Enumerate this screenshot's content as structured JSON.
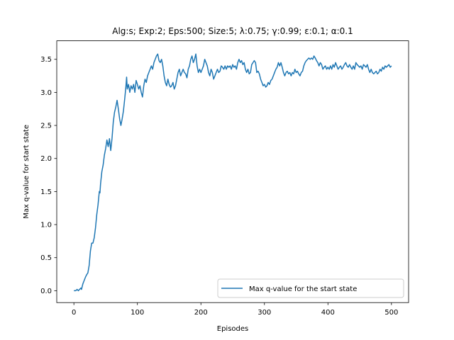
{
  "chart_data": {
    "type": "line",
    "title": "Alg:s; Exp:2; Eps:500; Size:5; λ:0.75; γ:0.99; ε:0.1; α:0.1",
    "xlabel": "Episodes",
    "ylabel": "Max q-value for start state",
    "xlim": [
      -27,
      527
    ],
    "ylim": [
      -0.18,
      3.78
    ],
    "xticks": [
      0,
      100,
      200,
      300,
      400,
      500
    ],
    "yticks": [
      0.0,
      0.5,
      1.0,
      1.5,
      2.0,
      2.5,
      3.0,
      3.5
    ],
    "xtick_labels": [
      "0",
      "100",
      "200",
      "300",
      "400",
      "500"
    ],
    "ytick_labels": [
      "0.0",
      "0.5",
      "1.0",
      "1.5",
      "2.0",
      "2.5",
      "3.0",
      "3.5"
    ],
    "grid": false,
    "legend": "lower right",
    "series": [
      {
        "name": "Max q-value for the start state",
        "color": "#1f77b4",
        "points": [
          [
            0,
            0.0
          ],
          [
            3,
            0.0
          ],
          [
            5,
            0.02
          ],
          [
            7,
            0.0
          ],
          [
            9,
            0.02
          ],
          [
            11,
            0.04
          ],
          [
            12,
            0.02
          ],
          [
            14,
            0.1
          ],
          [
            16,
            0.15
          ],
          [
            18,
            0.2
          ],
          [
            20,
            0.24
          ],
          [
            22,
            0.27
          ],
          [
            24,
            0.38
          ],
          [
            26,
            0.6
          ],
          [
            28,
            0.72
          ],
          [
            30,
            0.72
          ],
          [
            32,
            0.8
          ],
          [
            34,
            0.95
          ],
          [
            36,
            1.15
          ],
          [
            38,
            1.3
          ],
          [
            40,
            1.5
          ],
          [
            41,
            1.48
          ],
          [
            42,
            1.62
          ],
          [
            44,
            1.8
          ],
          [
            46,
            1.9
          ],
          [
            48,
            2.05
          ],
          [
            50,
            2.15
          ],
          [
            52,
            2.28
          ],
          [
            54,
            2.18
          ],
          [
            56,
            2.3
          ],
          [
            58,
            2.12
          ],
          [
            60,
            2.3
          ],
          [
            62,
            2.55
          ],
          [
            64,
            2.7
          ],
          [
            66,
            2.78
          ],
          [
            68,
            2.88
          ],
          [
            70,
            2.75
          ],
          [
            72,
            2.6
          ],
          [
            74,
            2.5
          ],
          [
            76,
            2.6
          ],
          [
            78,
            2.72
          ],
          [
            80,
            2.9
          ],
          [
            82,
            3.1
          ],
          [
            83,
            3.23
          ],
          [
            84,
            3.05
          ],
          [
            86,
            3.12
          ],
          [
            88,
            3.0
          ],
          [
            90,
            3.1
          ],
          [
            92,
            3.05
          ],
          [
            94,
            3.12
          ],
          [
            96,
            3.0
          ],
          [
            98,
            3.18
          ],
          [
            100,
            3.12
          ],
          [
            102,
            3.05
          ],
          [
            104,
            3.1
          ],
          [
            106,
            3.0
          ],
          [
            108,
            2.93
          ],
          [
            110,
            3.1
          ],
          [
            112,
            3.2
          ],
          [
            114,
            3.15
          ],
          [
            116,
            3.25
          ],
          [
            118,
            3.3
          ],
          [
            120,
            3.35
          ],
          [
            122,
            3.4
          ],
          [
            124,
            3.35
          ],
          [
            126,
            3.45
          ],
          [
            128,
            3.5
          ],
          [
            130,
            3.55
          ],
          [
            132,
            3.58
          ],
          [
            134,
            3.48
          ],
          [
            136,
            3.45
          ],
          [
            138,
            3.5
          ],
          [
            140,
            3.4
          ],
          [
            142,
            3.25
          ],
          [
            144,
            3.15
          ],
          [
            146,
            3.1
          ],
          [
            148,
            3.2
          ],
          [
            150,
            3.12
          ],
          [
            152,
            3.08
          ],
          [
            154,
            3.1
          ],
          [
            156,
            3.15
          ],
          [
            158,
            3.05
          ],
          [
            160,
            3.1
          ],
          [
            162,
            3.2
          ],
          [
            164,
            3.3
          ],
          [
            166,
            3.35
          ],
          [
            168,
            3.25
          ],
          [
            170,
            3.3
          ],
          [
            172,
            3.35
          ],
          [
            174,
            3.3
          ],
          [
            176,
            3.28
          ],
          [
            178,
            3.22
          ],
          [
            180,
            3.35
          ],
          [
            182,
            3.4
          ],
          [
            184,
            3.5
          ],
          [
            186,
            3.55
          ],
          [
            188,
            3.45
          ],
          [
            190,
            3.5
          ],
          [
            192,
            3.58
          ],
          [
            194,
            3.4
          ],
          [
            196,
            3.3
          ],
          [
            198,
            3.35
          ],
          [
            200,
            3.3
          ],
          [
            202,
            3.35
          ],
          [
            204,
            3.4
          ],
          [
            206,
            3.5
          ],
          [
            208,
            3.45
          ],
          [
            210,
            3.4
          ],
          [
            212,
            3.3
          ],
          [
            214,
            3.25
          ],
          [
            216,
            3.35
          ],
          [
            218,
            3.3
          ],
          [
            220,
            3.2
          ],
          [
            222,
            3.25
          ],
          [
            224,
            3.3
          ],
          [
            226,
            3.35
          ],
          [
            228,
            3.3
          ],
          [
            230,
            3.32
          ],
          [
            232,
            3.4
          ],
          [
            234,
            3.38
          ],
          [
            236,
            3.35
          ],
          [
            238,
            3.4
          ],
          [
            240,
            3.35
          ],
          [
            242,
            3.4
          ],
          [
            244,
            3.38
          ],
          [
            246,
            3.4
          ],
          [
            248,
            3.35
          ],
          [
            250,
            3.42
          ],
          [
            252,
            3.38
          ],
          [
            254,
            3.4
          ],
          [
            256,
            3.35
          ],
          [
            258,
            3.45
          ],
          [
            260,
            3.5
          ],
          [
            262,
            3.45
          ],
          [
            264,
            3.48
          ],
          [
            266,
            3.42
          ],
          [
            268,
            3.45
          ],
          [
            270,
            3.35
          ],
          [
            272,
            3.3
          ],
          [
            274,
            3.35
          ],
          [
            276,
            3.28
          ],
          [
            278,
            3.3
          ],
          [
            280,
            3.42
          ],
          [
            282,
            3.45
          ],
          [
            284,
            3.48
          ],
          [
            286,
            3.45
          ],
          [
            288,
            3.3
          ],
          [
            290,
            3.32
          ],
          [
            292,
            3.28
          ],
          [
            294,
            3.2
          ],
          [
            296,
            3.15
          ],
          [
            298,
            3.1
          ],
          [
            300,
            3.12
          ],
          [
            302,
            3.08
          ],
          [
            304,
            3.1
          ],
          [
            306,
            3.15
          ],
          [
            308,
            3.12
          ],
          [
            310,
            3.18
          ],
          [
            312,
            3.2
          ],
          [
            314,
            3.25
          ],
          [
            316,
            3.3
          ],
          [
            318,
            3.35
          ],
          [
            320,
            3.38
          ],
          [
            322,
            3.45
          ],
          [
            324,
            3.4
          ],
          [
            326,
            3.45
          ],
          [
            328,
            3.38
          ],
          [
            330,
            3.3
          ],
          [
            332,
            3.25
          ],
          [
            334,
            3.3
          ],
          [
            336,
            3.32
          ],
          [
            338,
            3.28
          ],
          [
            340,
            3.3
          ],
          [
            342,
            3.25
          ],
          [
            344,
            3.3
          ],
          [
            346,
            3.28
          ],
          [
            348,
            3.35
          ],
          [
            350,
            3.3
          ],
          [
            352,
            3.32
          ],
          [
            354,
            3.28
          ],
          [
            356,
            3.25
          ],
          [
            358,
            3.3
          ],
          [
            360,
            3.32
          ],
          [
            362,
            3.4
          ],
          [
            364,
            3.45
          ],
          [
            366,
            3.48
          ],
          [
            368,
            3.5
          ],
          [
            370,
            3.52
          ],
          [
            372,
            3.5
          ],
          [
            374,
            3.52
          ],
          [
            376,
            3.5
          ],
          [
            378,
            3.55
          ],
          [
            380,
            3.52
          ],
          [
            382,
            3.48
          ],
          [
            384,
            3.45
          ],
          [
            386,
            3.4
          ],
          [
            388,
            3.45
          ],
          [
            390,
            3.42
          ],
          [
            392,
            3.35
          ],
          [
            394,
            3.38
          ],
          [
            396,
            3.4
          ],
          [
            398,
            3.35
          ],
          [
            400,
            3.38
          ],
          [
            402,
            3.35
          ],
          [
            404,
            3.4
          ],
          [
            406,
            3.35
          ],
          [
            408,
            3.42
          ],
          [
            410,
            3.38
          ],
          [
            412,
            3.45
          ],
          [
            414,
            3.4
          ],
          [
            416,
            3.35
          ],
          [
            418,
            3.38
          ],
          [
            420,
            3.4
          ],
          [
            422,
            3.35
          ],
          [
            424,
            3.38
          ],
          [
            426,
            3.42
          ],
          [
            428,
            3.45
          ],
          [
            430,
            3.4
          ],
          [
            432,
            3.38
          ],
          [
            434,
            3.42
          ],
          [
            436,
            3.38
          ],
          [
            438,
            3.35
          ],
          [
            440,
            3.4
          ],
          [
            442,
            3.35
          ],
          [
            444,
            3.45
          ],
          [
            446,
            3.42
          ],
          [
            448,
            3.4
          ],
          [
            450,
            3.38
          ],
          [
            452,
            3.4
          ],
          [
            454,
            3.35
          ],
          [
            456,
            3.42
          ],
          [
            458,
            3.4
          ],
          [
            460,
            3.38
          ],
          [
            462,
            3.42
          ],
          [
            464,
            3.35
          ],
          [
            466,
            3.3
          ],
          [
            468,
            3.35
          ],
          [
            470,
            3.3
          ],
          [
            472,
            3.28
          ],
          [
            474,
            3.3
          ],
          [
            476,
            3.32
          ],
          [
            478,
            3.28
          ],
          [
            480,
            3.3
          ],
          [
            482,
            3.35
          ],
          [
            484,
            3.32
          ],
          [
            486,
            3.38
          ],
          [
            488,
            3.35
          ],
          [
            490,
            3.4
          ],
          [
            492,
            3.38
          ],
          [
            494,
            3.4
          ],
          [
            496,
            3.42
          ],
          [
            498,
            3.38
          ],
          [
            500,
            3.4
          ]
        ]
      }
    ]
  }
}
